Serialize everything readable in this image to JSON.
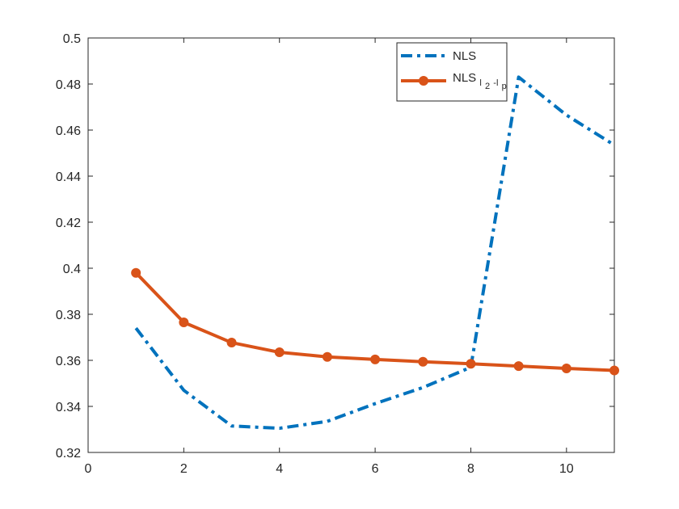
{
  "chart_data": {
    "type": "line",
    "title": "",
    "xlabel": "",
    "ylabel": "",
    "xlim": [
      0,
      11
    ],
    "ylim": [
      0.32,
      0.5
    ],
    "x_ticks": [
      0,
      2,
      4,
      6,
      8,
      10
    ],
    "x_tick_labels": [
      "0",
      "2",
      "4",
      "6",
      "8",
      "10"
    ],
    "y_ticks": [
      0.32,
      0.34,
      0.36,
      0.38,
      0.4,
      0.42,
      0.44,
      0.46,
      0.48,
      0.5
    ],
    "y_tick_labels": [
      "0.32",
      "0.34",
      "0.36",
      "0.38",
      "0.4",
      "0.42",
      "0.44",
      "0.46",
      "0.48",
      "0.5"
    ],
    "grid": false,
    "legend_position": "top-right",
    "series": [
      {
        "name": "NLS",
        "color": "#0072BD",
        "line_style": "dash-dot",
        "marker": "none",
        "x": [
          1,
          2,
          3,
          4,
          5,
          6,
          7,
          8,
          9,
          10,
          11
        ],
        "y": [
          0.374,
          0.347,
          0.3315,
          0.3305,
          0.3335,
          0.3412,
          0.3482,
          0.357,
          0.483,
          0.4665,
          0.4535
        ]
      },
      {
        "name": "NLS",
        "name_subscript": "l2-lp",
        "name_subscript_parts": [
          "l",
          "2",
          "-l",
          "p"
        ],
        "color": "#D95319",
        "line_style": "solid",
        "marker": "circle",
        "x": [
          1,
          2,
          3,
          4,
          5,
          6,
          7,
          8,
          9,
          10,
          11
        ],
        "y": [
          0.398,
          0.3765,
          0.3677,
          0.3635,
          0.3615,
          0.3604,
          0.3594,
          0.3585,
          0.3575,
          0.3565,
          0.3556
        ]
      }
    ]
  }
}
